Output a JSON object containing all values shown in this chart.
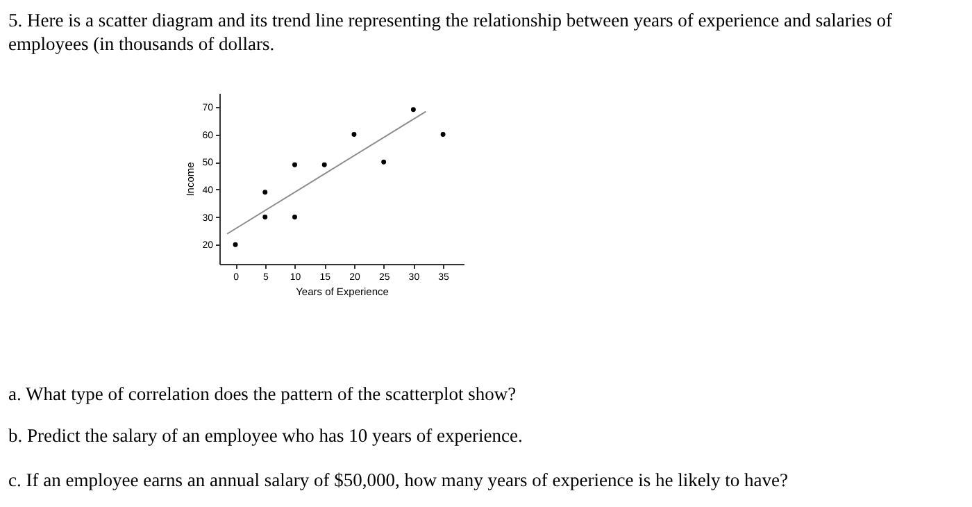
{
  "chart_data": {
    "type": "scatter",
    "title": "5. Here is a scatter diagram and its trend line representing the relationship between years of experience and salaries of employees (in thousands of dollars.",
    "xlabel": "Years of Experience",
    "ylabel": "Income",
    "series": [
      {
        "type": "scatter",
        "color": "#000000",
        "marker": "circle",
        "x": [
          0,
          5,
          5,
          10,
          10,
          15,
          20,
          25,
          30,
          35
        ],
        "values": [
          20,
          30,
          39,
          30,
          49,
          49,
          60,
          50,
          69,
          60
        ]
      },
      {
        "type": "line",
        "color": "#8c8c8c",
        "x": [
          -1.4,
          32.1
        ],
        "values": [
          23.9,
          68.3
        ]
      }
    ],
    "xlim": [
      -2.7,
      38.5
    ],
    "ylim": [
      13,
      75
    ],
    "xticks": [
      0,
      5,
      10,
      15,
      20,
      25,
      30,
      35
    ],
    "yticks": [
      20,
      30,
      40,
      50,
      60,
      70
    ],
    "grid": false,
    "annotations": [
      "a. What type of correlation does the pattern of the scatterplot show?",
      "b. Predict the salary of an employee who has 10 years of experience.",
      "c. If an employee earns an annual salary of $50,000, how many years of experience is he likely to have?"
    ]
  }
}
